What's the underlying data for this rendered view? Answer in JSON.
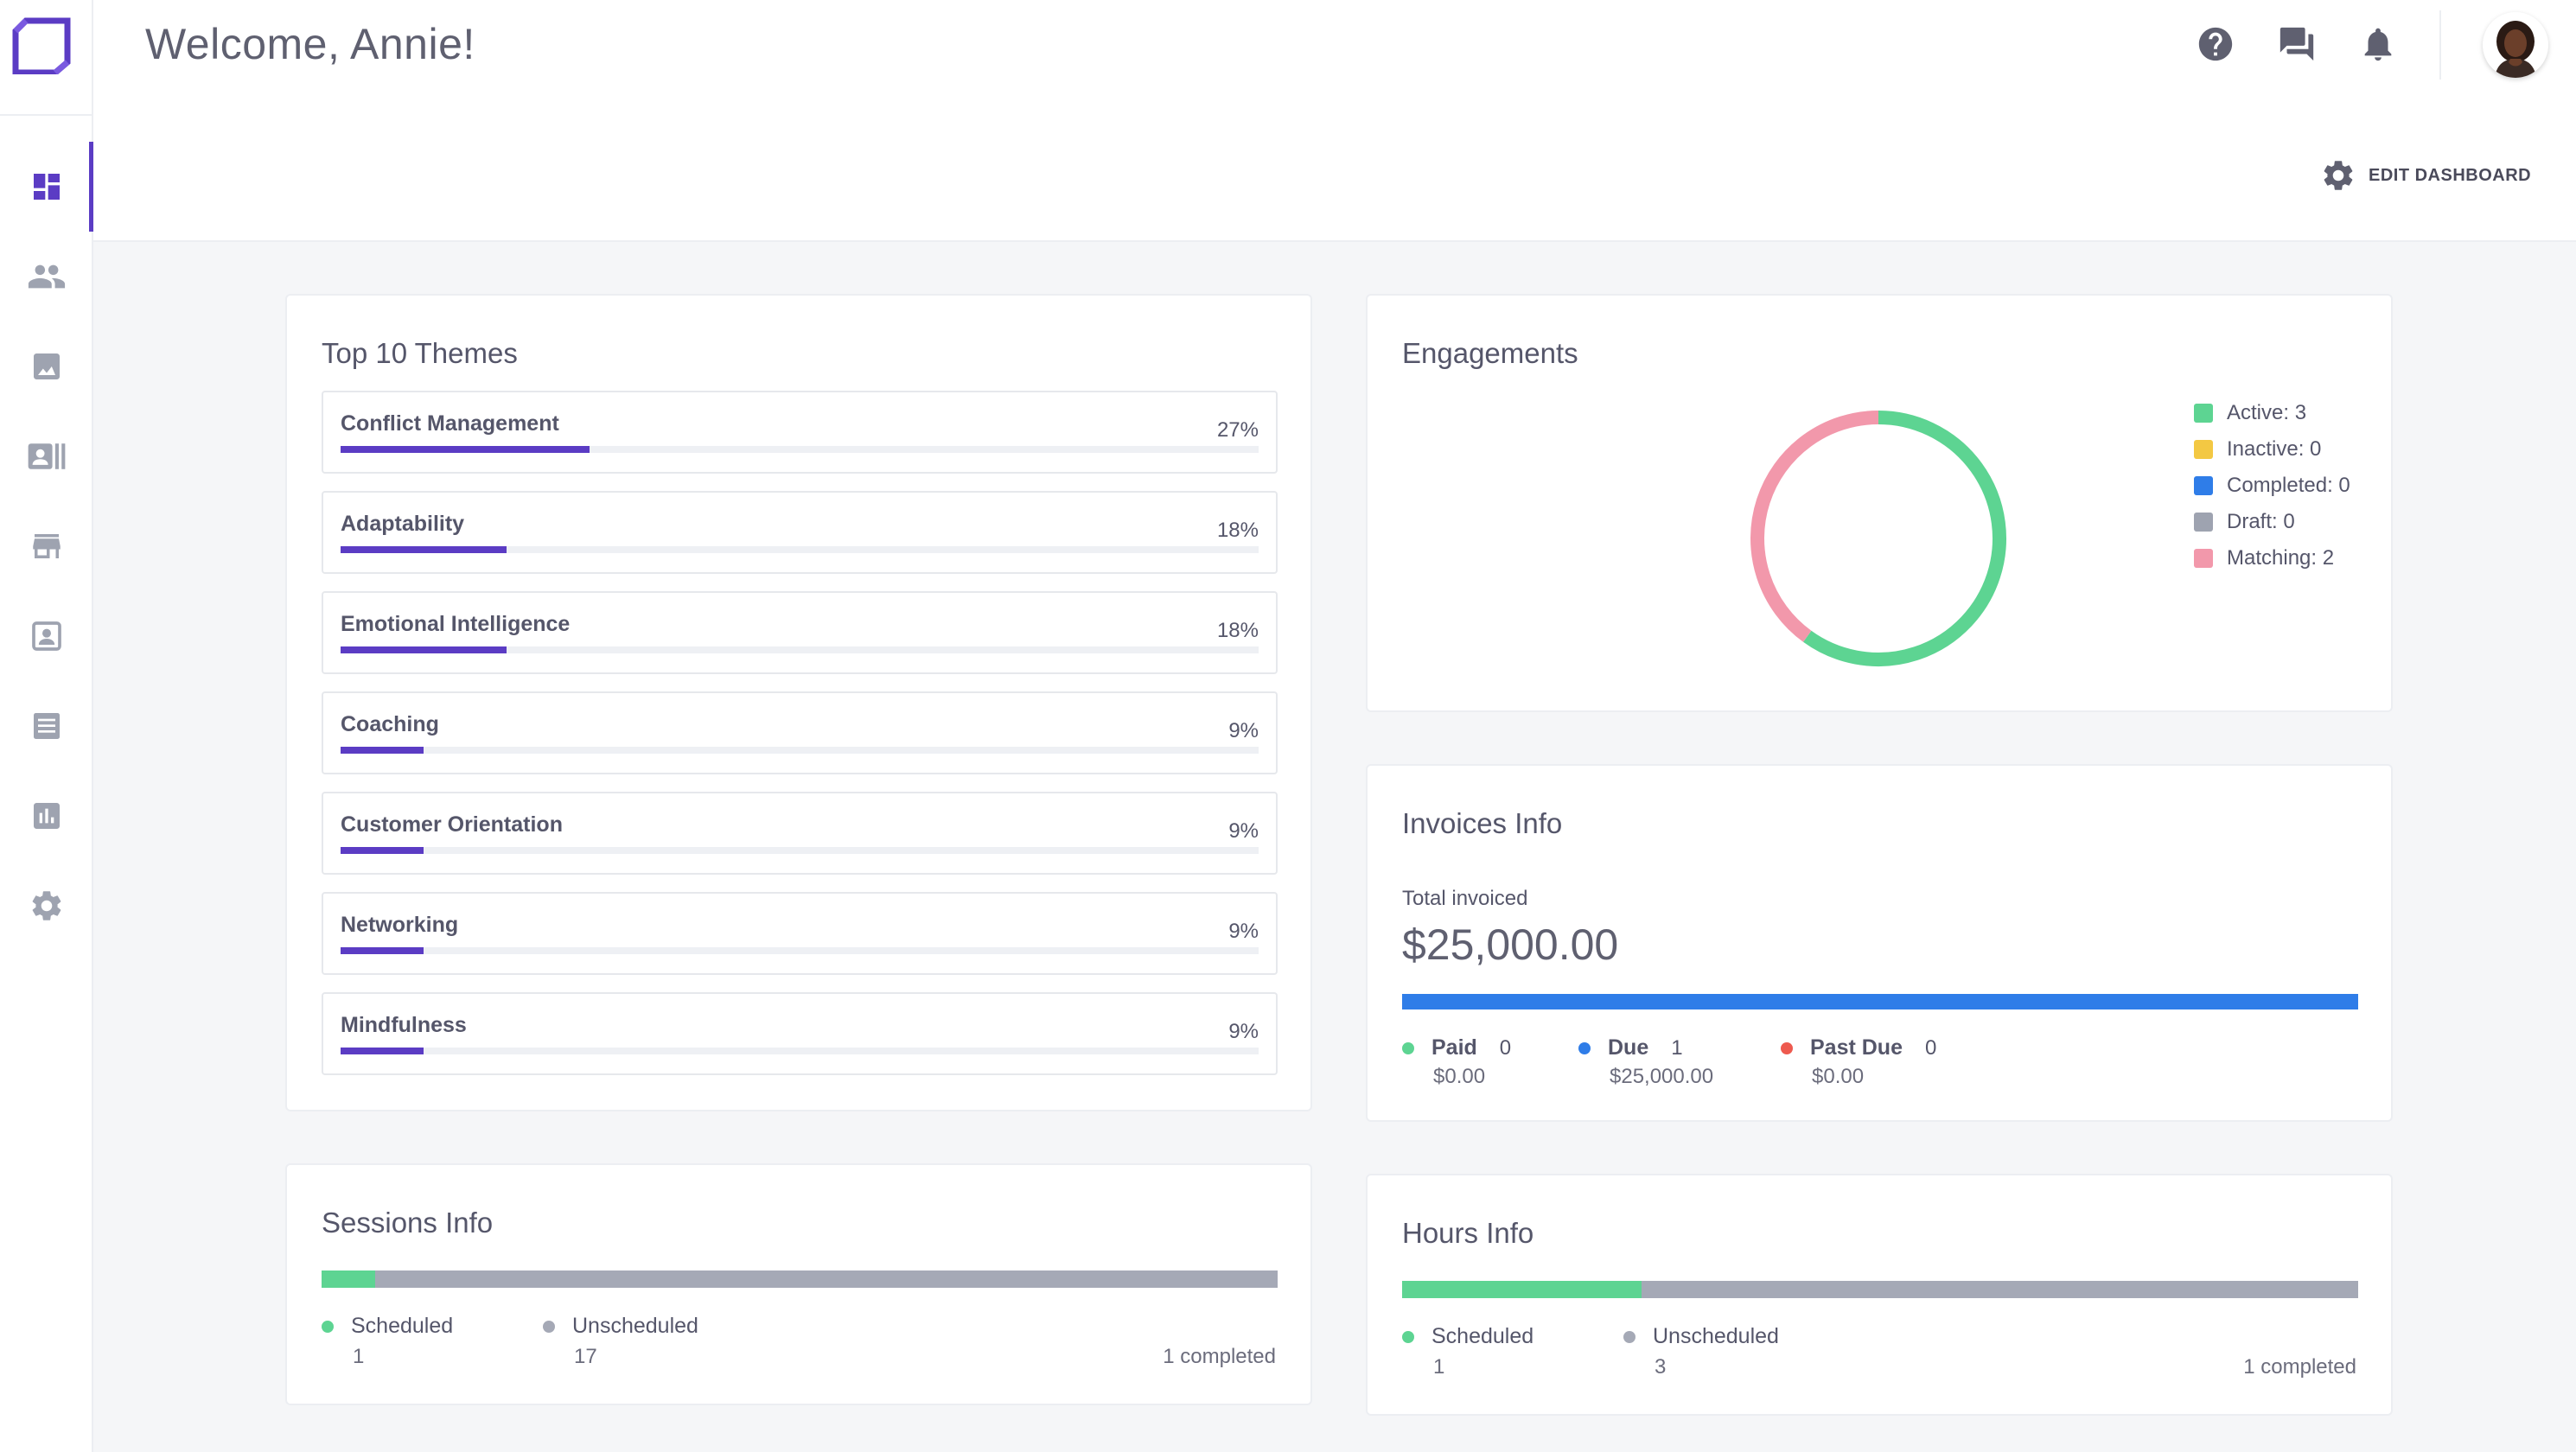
{
  "header": {
    "welcome": "Welcome, Annie!",
    "edit_dashboard": "EDIT DASHBOARD"
  },
  "sidebar": {
    "items": [
      {
        "icon": "dashboard-icon",
        "active": true
      },
      {
        "icon": "people-icon"
      },
      {
        "icon": "image-icon"
      },
      {
        "icon": "contact-card-icon"
      },
      {
        "icon": "store-icon"
      },
      {
        "icon": "profile-icon"
      },
      {
        "icon": "list-icon"
      },
      {
        "icon": "bar-chart-icon"
      },
      {
        "icon": "gear-icon"
      }
    ]
  },
  "themes": {
    "title": "Top 10 Themes",
    "items": [
      {
        "name": "Conflict Management",
        "pct": "27%",
        "value": 0.27
      },
      {
        "name": "Adaptability",
        "pct": "18%",
        "value": 0.18
      },
      {
        "name": "Emotional Intelligence",
        "pct": "18%",
        "value": 0.18
      },
      {
        "name": "Coaching",
        "pct": "9%",
        "value": 0.09
      },
      {
        "name": "Customer Orientation",
        "pct": "9%",
        "value": 0.09
      },
      {
        "name": "Networking",
        "pct": "9%",
        "value": 0.09
      },
      {
        "name": "Mindfulness",
        "pct": "9%",
        "value": 0.09
      }
    ]
  },
  "engagements": {
    "title": "Engagements",
    "legend": [
      {
        "label": "Active: 3",
        "color": "#5dd492",
        "value": 3
      },
      {
        "label": "Inactive: 0",
        "color": "#f3c843",
        "value": 0
      },
      {
        "label": "Completed: 0",
        "color": "#2f7de8",
        "value": 0
      },
      {
        "label": "Draft: 0",
        "color": "#9ea3b0",
        "value": 0
      },
      {
        "label": "Matching: 2",
        "color": "#f298ab",
        "value": 2
      }
    ]
  },
  "invoices": {
    "title": "Invoices Info",
    "total_label": "Total invoiced",
    "total": "$25,000.00",
    "bar_color": "#2f7de8",
    "stats": [
      {
        "label": "Paid",
        "count": "0",
        "amount": "$0.00",
        "color": "#5dd492"
      },
      {
        "label": "Due",
        "count": "1",
        "amount": "$25,000.00",
        "color": "#2f7de8"
      },
      {
        "label": "Past Due",
        "count": "0",
        "amount": "$0.00",
        "color": "#ee5a4f"
      }
    ]
  },
  "sessions": {
    "title": "Sessions Info",
    "scheduled_label": "Scheduled",
    "scheduled": "1",
    "unscheduled_label": "Unscheduled",
    "unscheduled": "17",
    "completed": "1 completed",
    "scheduled_fraction": 0.056
  },
  "hours": {
    "title": "Hours Info",
    "scheduled_label": "Scheduled",
    "scheduled": "1",
    "unscheduled_label": "Unscheduled",
    "unscheduled": "3",
    "completed": "1 completed",
    "scheduled_fraction": 0.25
  }
}
